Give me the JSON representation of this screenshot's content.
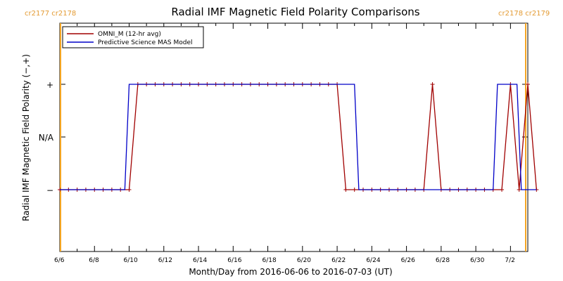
{
  "chart_data": {
    "type": "line",
    "title": "Radial IMF Magnetic Field Polarity Comparisons",
    "xlabel": "Month/Day from 2016-06-06 to 2016-07-03 (UT)",
    "ylabel": "Radial IMF Magnetic Field Polarity (−,+)",
    "x_range": [
      "2016-06-06",
      "2016-07-03"
    ],
    "x_ticks": [
      "6/6",
      "6/8",
      "6/10",
      "6/12",
      "6/14",
      "6/16",
      "6/18",
      "6/20",
      "6/22",
      "6/24",
      "6/26",
      "6/28",
      "6/30",
      "7/2"
    ],
    "y_ticks": [
      "−",
      "N/A",
      "+"
    ],
    "carrington": {
      "left": "cr2177 cr2178",
      "right": "cr2178 cr2179",
      "left_date": "2016-06-06",
      "right_date": "2016-07-03",
      "color": "#f5a623"
    },
    "legend": {
      "placement": "top-left"
    },
    "series": [
      {
        "name": "OMNI_M (12-hr avg)",
        "color": "#a00000",
        "markers": true,
        "points": [
          [
            "2016-06-06 00:00",
            -1
          ],
          [
            "2016-06-06 12:00",
            -1
          ],
          [
            "2016-06-07 00:00",
            -1
          ],
          [
            "2016-06-07 12:00",
            -1
          ],
          [
            "2016-06-08 00:00",
            -1
          ],
          [
            "2016-06-08 12:00",
            -1
          ],
          [
            "2016-06-09 00:00",
            -1
          ],
          [
            "2016-06-09 12:00",
            -1
          ],
          [
            "2016-06-10 00:00",
            -1
          ],
          [
            "2016-06-10 12:00",
            1
          ],
          [
            "2016-06-11 00:00",
            1
          ],
          [
            "2016-06-11 12:00",
            1
          ],
          [
            "2016-06-12 00:00",
            1
          ],
          [
            "2016-06-12 12:00",
            1
          ],
          [
            "2016-06-13 00:00",
            1
          ],
          [
            "2016-06-13 12:00",
            1
          ],
          [
            "2016-06-14 00:00",
            1
          ],
          [
            "2016-06-14 12:00",
            1
          ],
          [
            "2016-06-15 00:00",
            1
          ],
          [
            "2016-06-15 12:00",
            1
          ],
          [
            "2016-06-16 00:00",
            1
          ],
          [
            "2016-06-16 12:00",
            1
          ],
          [
            "2016-06-17 00:00",
            1
          ],
          [
            "2016-06-17 12:00",
            1
          ],
          [
            "2016-06-18 00:00",
            1
          ],
          [
            "2016-06-18 12:00",
            1
          ],
          [
            "2016-06-19 00:00",
            1
          ],
          [
            "2016-06-19 12:00",
            1
          ],
          [
            "2016-06-20 00:00",
            1
          ],
          [
            "2016-06-20 12:00",
            1
          ],
          [
            "2016-06-21 00:00",
            1
          ],
          [
            "2016-06-21 12:00",
            1
          ],
          [
            "2016-06-22 00:00",
            1
          ],
          [
            "2016-06-22 12:00",
            -1
          ],
          [
            "2016-06-23 00:00",
            -1
          ],
          [
            "2016-06-23 12:00",
            -1
          ],
          [
            "2016-06-24 00:00",
            -1
          ],
          [
            "2016-06-24 12:00",
            -1
          ],
          [
            "2016-06-25 00:00",
            -1
          ],
          [
            "2016-06-25 12:00",
            -1
          ],
          [
            "2016-06-26 00:00",
            -1
          ],
          [
            "2016-06-26 12:00",
            -1
          ],
          [
            "2016-06-27 00:00",
            -1
          ],
          [
            "2016-06-27 12:00",
            1
          ],
          [
            "2016-06-28 00:00",
            -1
          ],
          [
            "2016-06-28 12:00",
            -1
          ],
          [
            "2016-06-29 00:00",
            -1
          ],
          [
            "2016-06-29 12:00",
            -1
          ],
          [
            "2016-06-30 00:00",
            -1
          ],
          [
            "2016-06-30 12:00",
            -1
          ],
          [
            "2016-07-01 00:00",
            -1
          ],
          [
            "2016-07-01 12:00",
            -1
          ],
          [
            "2016-07-02 00:00",
            1
          ],
          [
            "2016-07-02 12:00",
            -1
          ],
          [
            "2016-07-03 00:00",
            1
          ],
          [
            "2016-07-03 12:00",
            -1
          ]
        ]
      },
      {
        "name": "Predictive Science MAS Model",
        "color": "#0000c8",
        "markers": false,
        "points": [
          [
            "2016-06-06 00:00",
            -1
          ],
          [
            "2016-06-09 18:00",
            -1
          ],
          [
            "2016-06-10 00:00",
            1
          ],
          [
            "2016-06-23 00:00",
            1
          ],
          [
            "2016-06-23 06:00",
            -1
          ],
          [
            "2016-07-01 00:00",
            -1
          ],
          [
            "2016-07-01 06:00",
            1
          ],
          [
            "2016-07-02 09:00",
            1
          ],
          [
            "2016-07-02 15:00",
            -1
          ],
          [
            "2016-07-03 12:00",
            -1
          ]
        ]
      }
    ]
  }
}
